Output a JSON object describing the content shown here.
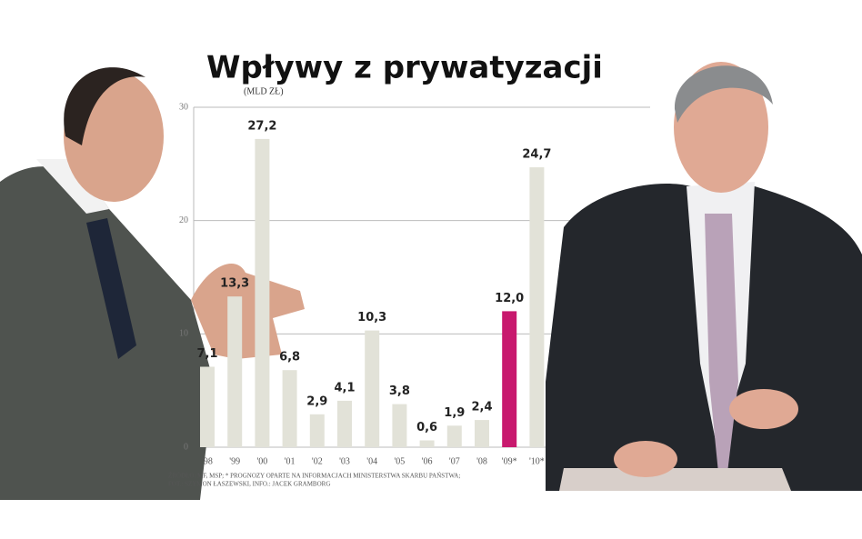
{
  "chart_data": {
    "type": "bar",
    "title": "Wpływy z prywatyzacji",
    "subtitle": "(MLD ZŁ)",
    "categories": [
      "'98",
      "'99",
      "'00",
      "'01",
      "'02",
      "'03",
      "'04",
      "'05",
      "'06",
      "'07",
      "'08",
      "'09*",
      "'10*"
    ],
    "values": [
      7.1,
      13.3,
      27.2,
      6.8,
      2.9,
      4.1,
      10.3,
      3.8,
      0.6,
      1.9,
      2.4,
      12.0,
      24.7
    ],
    "value_labels": [
      "7,1",
      "13,3",
      "27,2",
      "6,8",
      "2,9",
      "4,1",
      "10,3",
      "3,8",
      "0,6",
      "1,9",
      "2,4",
      "12,0",
      "24,7"
    ],
    "colors": [
      "#e2e2d8",
      "#e2e2d8",
      "#e2e2d8",
      "#e2e2d8",
      "#e2e2d8",
      "#e2e2d8",
      "#e2e2d8",
      "#e2e2d8",
      "#e2e2d8",
      "#e2e2d8",
      "#e2e2d8",
      "#c8196e",
      "#e2e2d8"
    ],
    "ylim": [
      0,
      30
    ],
    "yticks": [
      0,
      10,
      20,
      30
    ],
    "grid": true,
    "source": "ŹRÓDŁO: MF, MSP; * PROGNOZY OPARTE NA INFORMACJACH MINISTERSTWA SKARBU PAŃSTWA;",
    "credits": "FOT.: SZYMON ŁASZEWSKI, INFO.: JACEK GRAMBORG"
  }
}
